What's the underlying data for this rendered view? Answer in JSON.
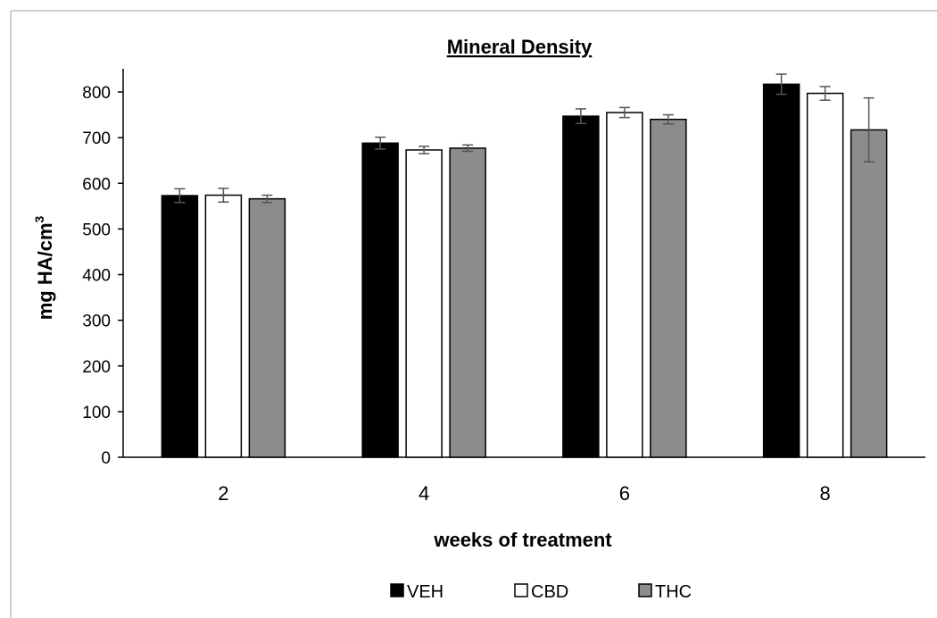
{
  "chart_data": {
    "type": "bar",
    "title": "Mineral Density",
    "xlabel": "weeks of treatment",
    "ylabel_main": "mg HA/cm",
    "ylabel_sup": "3",
    "categories": [
      "2",
      "4",
      "6",
      "8"
    ],
    "ylim": [
      0,
      800
    ],
    "yticks": [
      "0",
      "100",
      "200",
      "300",
      "400",
      "500",
      "600",
      "700",
      "800"
    ],
    "grid": false,
    "legend_position": "bottom",
    "series": [
      {
        "name": "VEH",
        "color": "#000000",
        "values": [
          573,
          688,
          747,
          817
        ],
        "errors": [
          15,
          13,
          16,
          22
        ]
      },
      {
        "name": "CBD",
        "color": "#ffffff",
        "values": [
          574,
          673,
          755,
          797
        ],
        "errors": [
          15,
          8,
          11,
          15
        ]
      },
      {
        "name": "THC",
        "color": "#8c8c8c",
        "values": [
          566,
          677,
          740,
          717
        ],
        "errors": [
          8,
          7,
          10,
          70
        ]
      }
    ]
  }
}
